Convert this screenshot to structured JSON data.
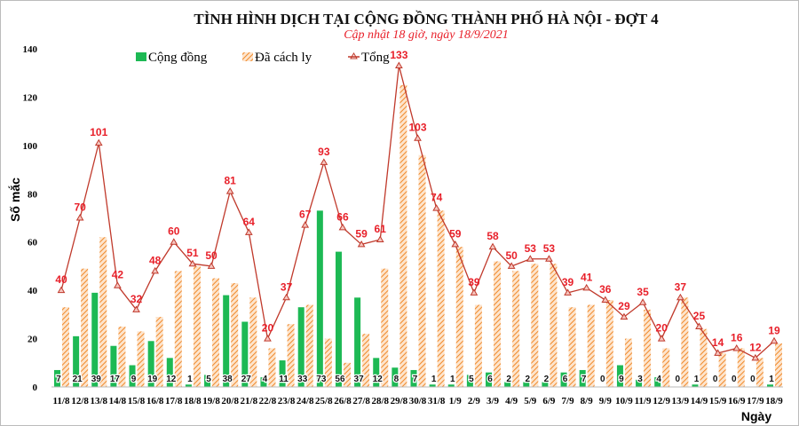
{
  "chart_data": {
    "type": "bar",
    "title": "TÌNH HÌNH DỊCH TẠI CỘNG ĐỒNG THÀNH PHỐ HÀ NỘI - ĐỢT 4",
    "subtitle": "Cập nhật 18 giờ, ngày 18/9/2021",
    "xlabel": "Ngày",
    "ylabel": "Số mắc",
    "ylim": [
      0,
      140
    ],
    "yticks": [
      0,
      20,
      40,
      60,
      80,
      100,
      120,
      140
    ],
    "grid": false,
    "legend": "top-left",
    "categories": [
      "11/8",
      "12/8",
      "13/8",
      "14/8",
      "15/8",
      "16/8",
      "17/8",
      "18/8",
      "19/8",
      "20/8",
      "21/8",
      "22/8",
      "23/8",
      "24/8",
      "25/8",
      "26/8",
      "27/8",
      "28/8",
      "29/8",
      "30/8",
      "31/8",
      "1/9",
      "2/9",
      "3/9",
      "4/9",
      "5/9",
      "6/9",
      "7/9",
      "8/9",
      "9/9",
      "10/9",
      "11/9",
      "12/9",
      "13/9",
      "14/9",
      "15/9",
      "16/9",
      "17/9",
      "18/9"
    ],
    "series": [
      {
        "name": "Cộng đồng",
        "type": "bar",
        "color": "#1db954",
        "values": [
          7,
          21,
          39,
          17,
          9,
          19,
          12,
          1,
          5,
          38,
          27,
          4,
          11,
          33,
          73,
          56,
          37,
          12,
          8,
          7,
          1,
          1,
          5,
          6,
          2,
          2,
          2,
          6,
          7,
          0,
          9,
          3,
          4,
          0,
          1,
          0,
          0,
          0,
          1
        ]
      },
      {
        "name": "Đã cách ly",
        "type": "bar",
        "color": "#f4a460",
        "values": [
          33,
          49,
          62,
          25,
          23,
          29,
          48,
          50,
          45,
          43,
          37,
          16,
          26,
          34,
          20,
          10,
          22,
          49,
          125,
          96,
          73,
          58,
          34,
          52,
          48,
          51,
          51,
          33,
          34,
          36,
          20,
          32,
          16,
          37,
          24,
          14,
          16,
          12,
          18
        ]
      },
      {
        "name": "Tổng",
        "type": "line",
        "color": "#c0392b",
        "values": [
          40,
          70,
          101,
          42,
          32,
          48,
          60,
          51,
          50,
          81,
          64,
          20,
          37,
          67,
          93,
          66,
          59,
          61,
          133,
          103,
          74,
          59,
          39,
          58,
          50,
          53,
          53,
          39,
          41,
          36,
          29,
          35,
          20,
          37,
          25,
          14,
          16,
          12,
          19
        ]
      }
    ]
  }
}
